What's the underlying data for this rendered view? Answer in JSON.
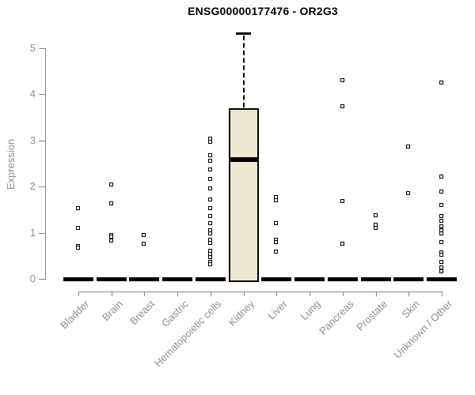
{
  "chart_data": {
    "type": "boxplot",
    "title": "ENSG00000177476 - OR2G3",
    "ylabel": "Expression",
    "ylim": [
      0,
      5.35
    ],
    "yticks": [
      0,
      1,
      2,
      3,
      4,
      5
    ],
    "grid": false,
    "legend": "none",
    "colors": {
      "box_fill": "#EDE8D0",
      "stroke": "#000000",
      "axis": "#878787",
      "tick_label": "#8f8f8f",
      "title": "#000000"
    },
    "categories": [
      "Bladder",
      "Brain",
      "Breast",
      "Gastric",
      "Hematopoietic cells",
      "Kidney",
      "Liver",
      "Lung",
      "Pancreas",
      "Prostate",
      "Skin",
      "Unknown / Other"
    ],
    "series": [
      {
        "category": "Bladder",
        "median": 0,
        "points": [
          1.52,
          1.1,
          0.7,
          0.66
        ]
      },
      {
        "category": "Brain",
        "median": 0,
        "points": [
          2.04,
          1.63,
          0.95,
          0.9,
          0.82
        ]
      },
      {
        "category": "Breast",
        "median": 0,
        "points": [
          0.94,
          0.75
        ]
      },
      {
        "category": "Gastric",
        "median": 0,
        "points": []
      },
      {
        "category": "Hematopoietic cells",
        "median": 0,
        "points": [
          3.03,
          2.97,
          2.67,
          2.55,
          2.36,
          2.16,
          1.95,
          1.71,
          1.52,
          1.35,
          1.2,
          1.04,
          0.98,
          0.84,
          0.77,
          0.6,
          0.53,
          0.46,
          0.36,
          0.31
        ]
      },
      {
        "category": "Kidney",
        "median": 2.59,
        "q1": 0,
        "q3": 3.7,
        "whisker_low": 0,
        "whisker_high": 5.33,
        "points": []
      },
      {
        "category": "Liver",
        "median": 0,
        "points": [
          1.76,
          1.69,
          1.2,
          0.84,
          0.78,
          0.58
        ]
      },
      {
        "category": "Lung",
        "median": 0,
        "points": []
      },
      {
        "category": "Pancreas",
        "median": 0,
        "points": [
          4.3,
          3.73,
          1.67,
          0.76
        ]
      },
      {
        "category": "Prostate",
        "median": 0,
        "points": [
          1.37,
          1.16,
          1.1
        ]
      },
      {
        "category": "Skin",
        "median": 0,
        "points": [
          2.86,
          1.85
        ]
      },
      {
        "category": "Unknown / Other",
        "median": 0,
        "points": [
          4.25,
          2.21,
          1.88,
          1.59,
          1.35,
          1.25,
          1.13,
          1.04,
          0.97,
          0.79,
          0.57,
          0.52,
          0.36,
          0.24,
          0.15
        ]
      }
    ]
  }
}
